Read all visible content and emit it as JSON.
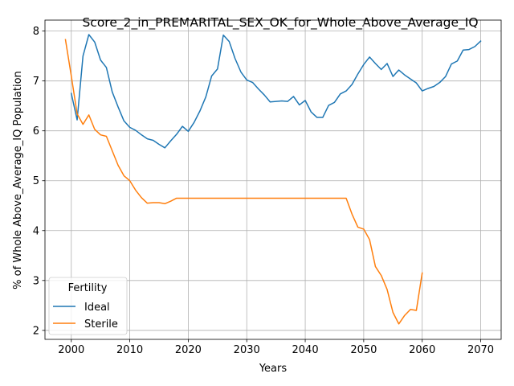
{
  "chart_data": {
    "type": "line",
    "title": "Score_2_in_PREMARITAL_SEX_OK_for_Whole_Above_Average_IQ",
    "xlabel": "Years",
    "ylabel": "% of Whole Above_Average_IQ Population",
    "xlim": [
      1995.5,
      2073.5
    ],
    "ylim": [
      1.82,
      8.22
    ],
    "xticks": [
      2000,
      2010,
      2020,
      2030,
      2040,
      2050,
      2060,
      2070
    ],
    "yticks": [
      2,
      3,
      4,
      5,
      6,
      7,
      8
    ],
    "grid": true,
    "legend": {
      "title": "Fertility",
      "placement": "lower-left"
    },
    "series": [
      {
        "name": "Ideal",
        "color": "#1f77b4",
        "x": [
          2000,
          2001,
          2002,
          2003,
          2004,
          2005,
          2006,
          2007,
          2008,
          2009,
          2010,
          2011,
          2012,
          2013,
          2014,
          2015,
          2016,
          2017,
          2018,
          2019,
          2020,
          2021,
          2022,
          2023,
          2024,
          2025,
          2026,
          2027,
          2028,
          2029,
          2030,
          2031,
          2032,
          2033,
          2034,
          2035,
          2036,
          2037,
          2038,
          2039,
          2040,
          2041,
          2042,
          2043,
          2044,
          2045,
          2046,
          2047,
          2048,
          2049,
          2050,
          2051,
          2052,
          2053,
          2054,
          2055,
          2056,
          2057,
          2058,
          2059,
          2060,
          2061,
          2062,
          2063,
          2064,
          2065,
          2066,
          2067,
          2068,
          2069,
          2070
        ],
        "y": [
          6.75,
          6.22,
          7.5,
          7.93,
          7.78,
          7.42,
          7.27,
          6.78,
          6.48,
          6.2,
          6.07,
          6.01,
          5.92,
          5.84,
          5.81,
          5.73,
          5.66,
          5.8,
          5.93,
          6.09,
          5.99,
          6.17,
          6.4,
          6.68,
          7.1,
          7.24,
          7.92,
          7.79,
          7.45,
          7.18,
          7.02,
          6.97,
          6.84,
          6.72,
          6.58,
          6.59,
          6.6,
          6.59,
          6.69,
          6.52,
          6.61,
          6.38,
          6.27,
          6.27,
          6.51,
          6.57,
          6.74,
          6.8,
          6.93,
          7.14,
          7.33,
          7.48,
          7.35,
          7.23,
          7.35,
          7.09,
          7.22,
          7.12,
          7.04,
          6.96,
          6.8,
          6.85,
          6.89,
          6.97,
          7.09,
          7.34,
          7.4,
          7.62,
          7.63,
          7.69,
          7.8
        ]
      },
      {
        "name": "Sterile",
        "color": "#ff7f0e",
        "x": [
          1999,
          2000,
          2001,
          2002,
          2003,
          2004,
          2005,
          2006,
          2007,
          2008,
          2009,
          2010,
          2011,
          2012,
          2013,
          2014,
          2015,
          2016,
          2017,
          2018,
          2019,
          2020,
          2025,
          2030,
          2035,
          2040,
          2045,
          2047,
          2048,
          2049,
          2050,
          2051,
          2052,
          2053,
          2054,
          2055,
          2056,
          2057,
          2058,
          2059,
          2060
        ],
        "y": [
          7.83,
          7.1,
          6.34,
          6.13,
          6.32,
          6.03,
          5.92,
          5.89,
          5.6,
          5.31,
          5.1,
          5.0,
          4.81,
          4.66,
          4.55,
          4.56,
          4.56,
          4.54,
          4.59,
          4.65,
          4.65,
          4.65,
          4.65,
          4.65,
          4.65,
          4.65,
          4.65,
          4.65,
          4.33,
          4.07,
          4.03,
          3.82,
          3.28,
          3.1,
          2.82,
          2.36,
          2.13,
          2.3,
          2.42,
          2.4,
          3.15
        ]
      }
    ]
  }
}
